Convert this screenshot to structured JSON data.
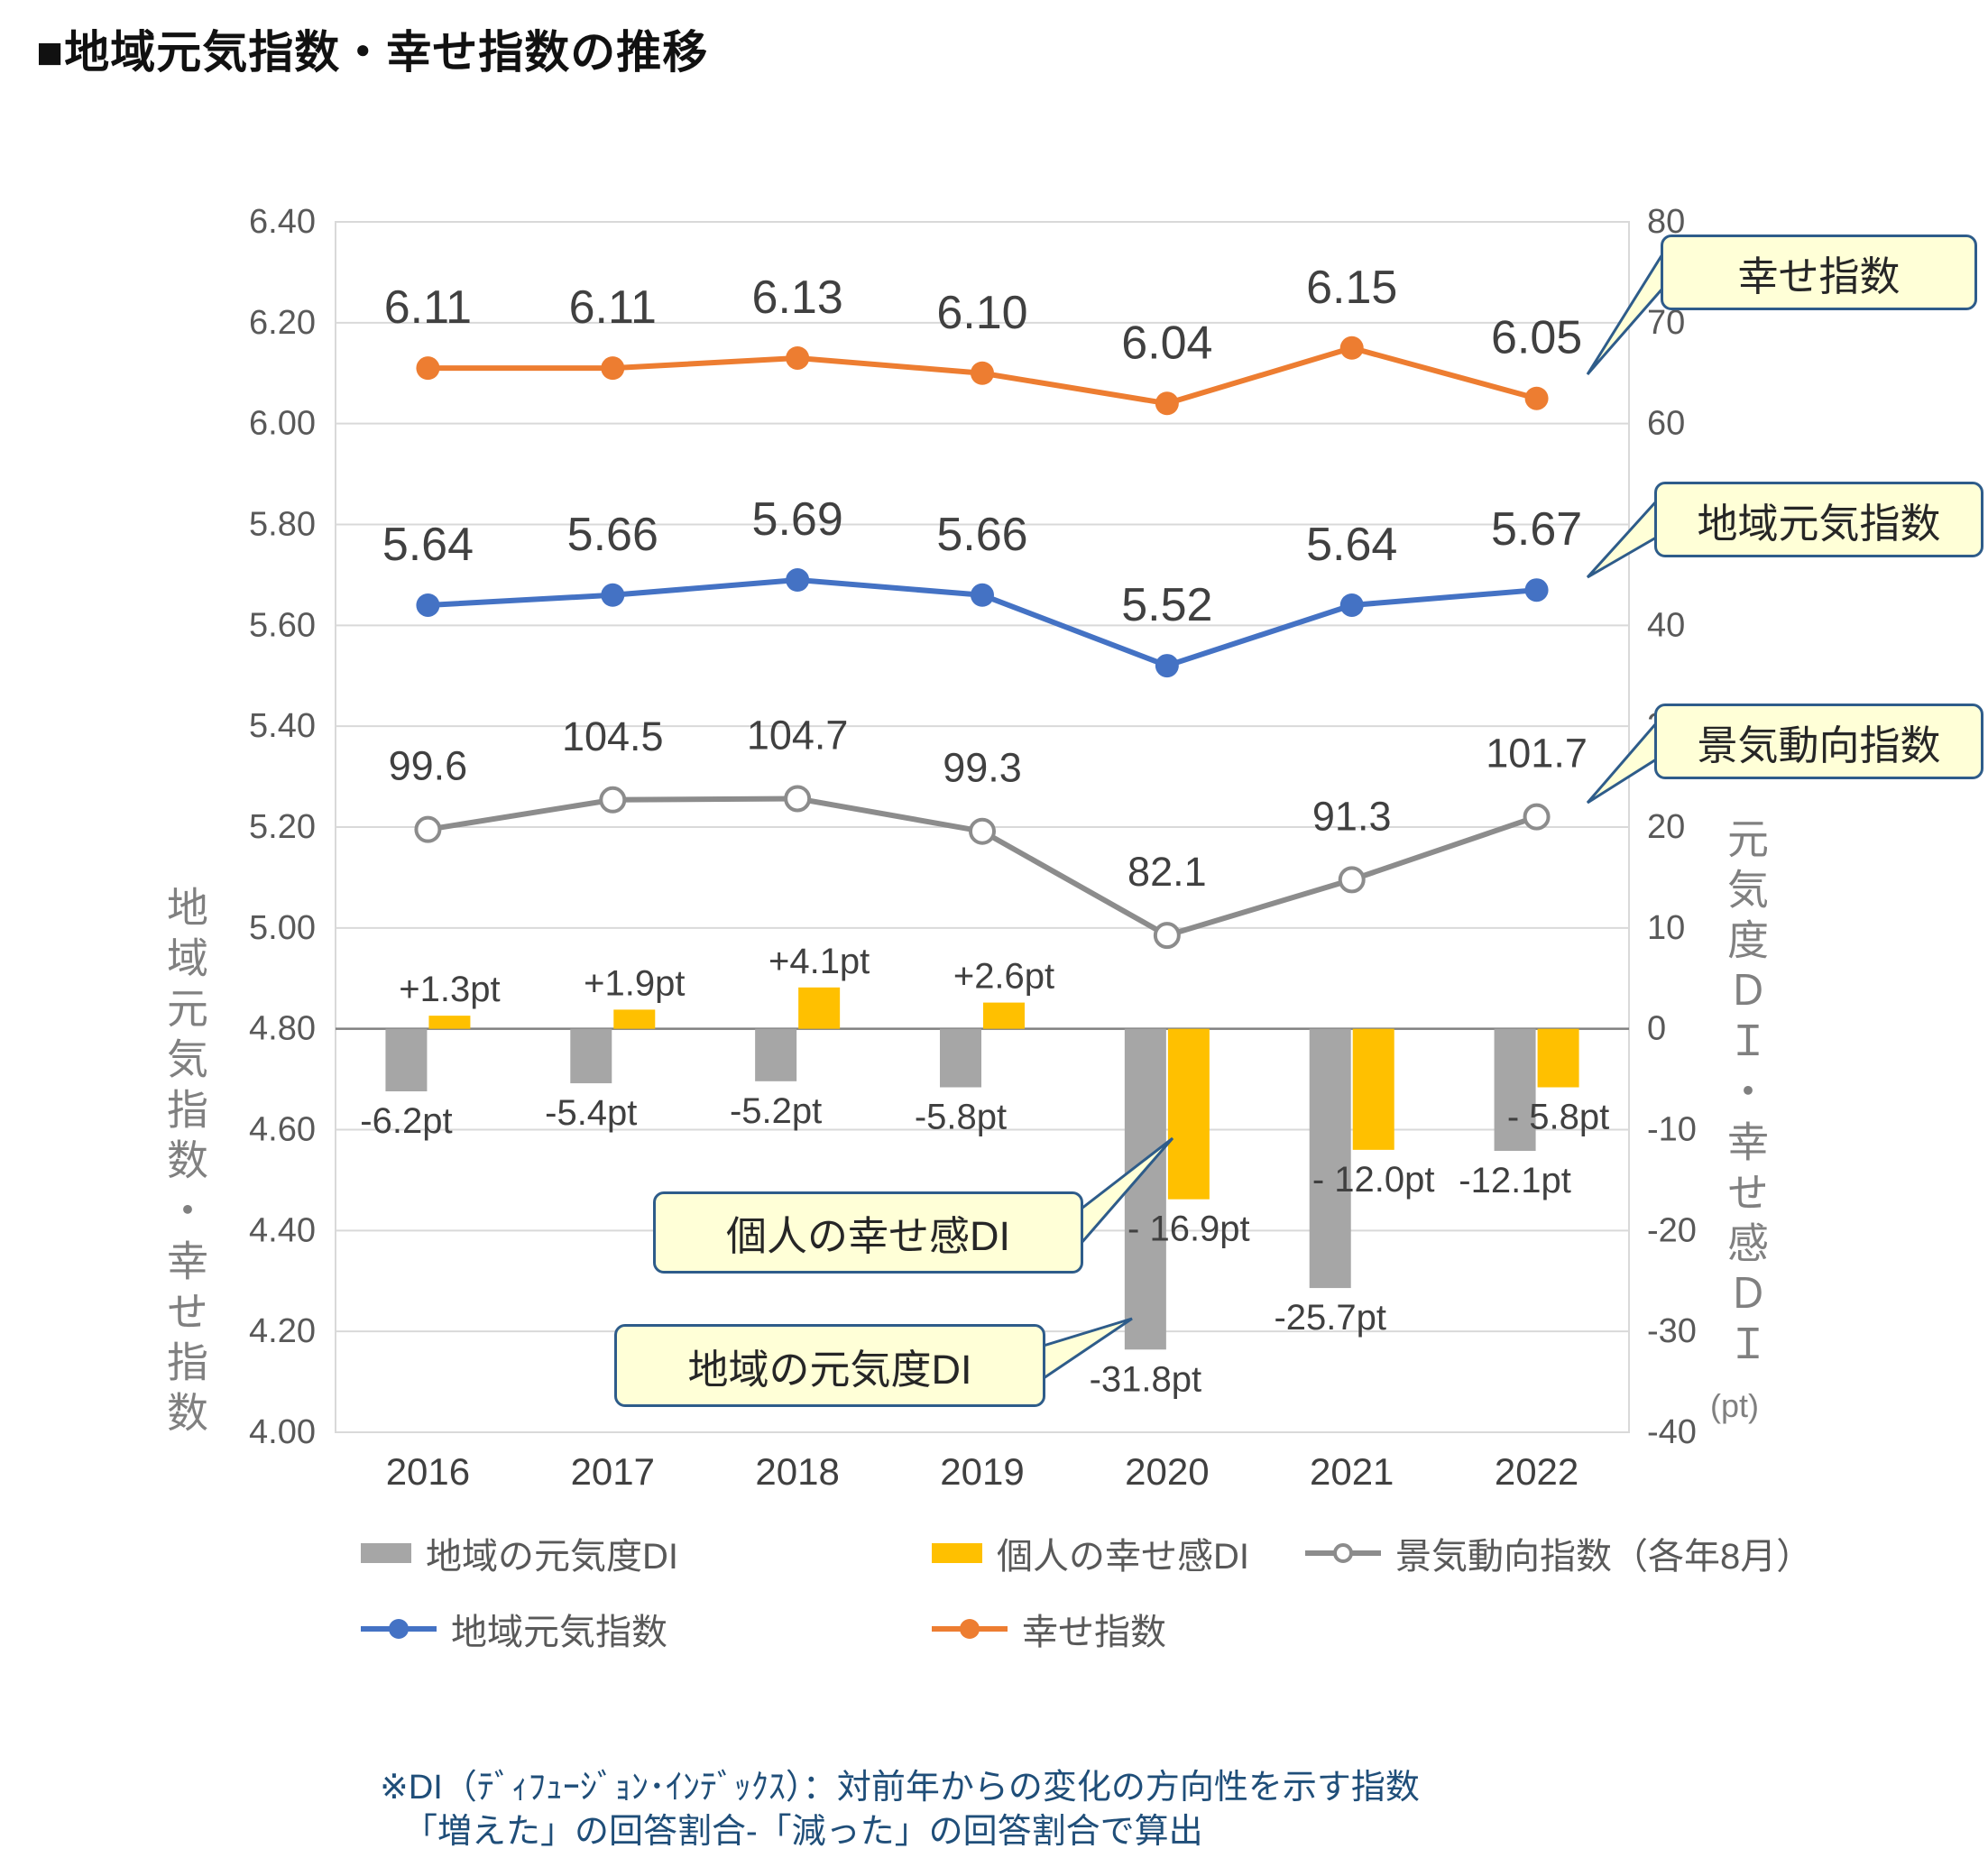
{
  "title": "■地域元気指数・幸せ指数の推移",
  "chart_data": {
    "type": "composite",
    "categories": [
      "2016",
      "2017",
      "2018",
      "2019",
      "2020",
      "2021",
      "2022"
    ],
    "series": [
      {
        "id": "happiness_index",
        "name": "幸せ指数",
        "type": "line",
        "axis": "left",
        "color": "#ED7D31",
        "marker": "filled",
        "values": [
          6.11,
          6.11,
          6.13,
          6.1,
          6.04,
          6.15,
          6.05
        ],
        "labels": [
          "6.11",
          "6.11",
          "6.13",
          "6.10",
          "6.04",
          "6.15",
          "6.05"
        ]
      },
      {
        "id": "vitality_index",
        "name": "地域元気指数",
        "type": "line",
        "axis": "left",
        "color": "#4472C4",
        "marker": "filled",
        "values": [
          5.64,
          5.66,
          5.69,
          5.66,
          5.52,
          5.64,
          5.67
        ],
        "labels": [
          "5.64",
          "5.66",
          "5.69",
          "5.66",
          "5.52",
          "5.64",
          "5.67"
        ]
      },
      {
        "id": "business_conditions_index",
        "name": "景気動向指数（各年8月）",
        "type": "line",
        "axis": "hidden",
        "color": "#8C8C8C",
        "marker": "open",
        "values": [
          99.6,
          104.5,
          104.7,
          99.3,
          82.1,
          91.3,
          101.7
        ],
        "labels": [
          "99.6",
          "104.5",
          "104.7",
          "99.3",
          "82.1",
          "91.3",
          "101.7"
        ]
      },
      {
        "id": "vitality_di",
        "name": "地域の元気度DI",
        "type": "bar",
        "axis": "right",
        "color": "#A6A6A6",
        "values": [
          -6.2,
          -5.4,
          -5.2,
          -5.8,
          -31.8,
          -25.7,
          -12.1
        ],
        "labels": [
          "-6.2pt",
          "-5.4pt",
          "-5.2pt",
          "-5.8pt",
          "-31.8pt",
          "-25.7pt",
          "-12.1pt"
        ]
      },
      {
        "id": "happiness_di",
        "name": "個人の幸せ感DI",
        "type": "bar",
        "axis": "right",
        "color": "#FFC000",
        "values": [
          1.3,
          1.9,
          4.1,
          2.6,
          -16.9,
          -12.0,
          -5.8
        ],
        "labels": [
          "+1.3pt",
          "+1.9pt",
          "+4.1pt",
          "+2.6pt",
          "- 16.9pt",
          "- 12.0pt",
          "- 5.8pt"
        ]
      }
    ],
    "axes": {
      "left": {
        "min": 4.0,
        "max": 6.4,
        "step": 0.2,
        "title": "地域元気指数・幸せ指数"
      },
      "right": {
        "min": -40,
        "max": 80,
        "step": 10,
        "title": "元気度ＤＩ・幸せ感ＤＩ",
        "unit": "(pt)"
      },
      "hidden": {
        "min": 0,
        "max": 200
      }
    },
    "grid": true,
    "legend_position": "bottom"
  },
  "legend": {
    "rows": [
      [
        {
          "swatch": "bar",
          "color": "#A6A6A6",
          "label": "地域の元気度DI"
        },
        {
          "swatch": "bar",
          "color": "#FFC000",
          "label": "個人の幸せ感DI"
        },
        {
          "swatch": "line-open",
          "color": "#8C8C8C",
          "label": "景気動向指数（各年8月）"
        }
      ],
      [
        {
          "swatch": "line-dot",
          "color": "#4472C4",
          "label": "地域元気指数"
        },
        {
          "swatch": "line-dot",
          "color": "#ED7D31",
          "label": "幸せ指数"
        }
      ]
    ]
  },
  "callouts": [
    {
      "id": "happiness-index",
      "label": "幸せ指数"
    },
    {
      "id": "vitality-index",
      "label": "地域元気指数"
    },
    {
      "id": "business-index",
      "label": "景気動向指数"
    },
    {
      "id": "happiness-di",
      "label": "個人の幸せ感DI"
    },
    {
      "id": "vitality-di",
      "label": "地域の元気度DI"
    }
  ],
  "footnote": {
    "line1": "※DI（ﾃﾞｨﾌｭｰｼﾞｮﾝ･ｲﾝﾃﾞｯｸｽ）：対前年からの変化の方向性を示す指数",
    "line2": "「増えた」の回答割合-「減った」の回答割合で算出"
  },
  "colors": {
    "happiness_line": "#ED7D31",
    "vitality_line": "#4472C4",
    "business_line": "#8C8C8C",
    "vitality_di_bar": "#A6A6A6",
    "happiness_di_bar": "#FFC000",
    "grid": "#D9D9D9",
    "zero_line": "#808080",
    "data_label": "#404040",
    "axis_text": "#595959",
    "callout_fill": "#FFFFD7",
    "callout_border": "#2E5C8A",
    "footnote_text": "#1F4E79"
  }
}
